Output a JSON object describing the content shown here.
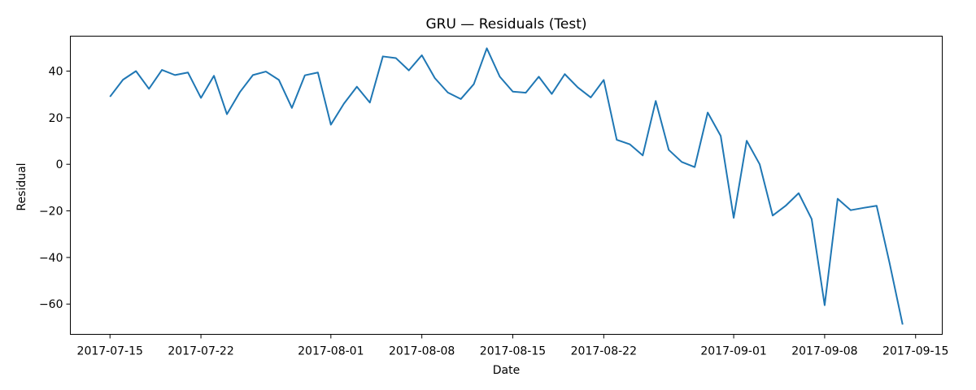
{
  "chart_data": {
    "type": "line",
    "title": "GRU — Residuals (Test)",
    "xlabel": "Date",
    "ylabel": "Residual",
    "x_axis_type": "date",
    "xlim": [
      "2017-07-15",
      "2017-09-16"
    ],
    "ylim": [
      -73,
      55
    ],
    "x_ticks": [
      "2017-07-15",
      "2017-07-22",
      "2017-08-01",
      "2017-08-08",
      "2017-08-15",
      "2017-08-22",
      "2017-09-01",
      "2017-09-08",
      "2017-09-15"
    ],
    "y_ticks": [
      40,
      20,
      0,
      -20,
      -40,
      -60
    ],
    "y_tick_labels": [
      "40",
      "20",
      "0",
      "−20",
      "−40",
      "−60"
    ],
    "grid": false,
    "line_color": "#1f77b4",
    "series": [
      {
        "x": [
          "2017-07-15",
          "2017-07-16",
          "2017-07-17",
          "2017-07-18",
          "2017-07-19",
          "2017-07-20",
          "2017-07-21",
          "2017-07-22",
          "2017-07-23",
          "2017-07-24",
          "2017-07-25",
          "2017-07-26",
          "2017-07-27",
          "2017-07-28",
          "2017-07-29",
          "2017-07-30",
          "2017-07-31",
          "2017-08-01",
          "2017-08-02",
          "2017-08-03",
          "2017-08-04",
          "2017-08-05",
          "2017-08-06",
          "2017-08-07",
          "2017-08-08",
          "2017-08-09",
          "2017-08-10",
          "2017-08-11",
          "2017-08-12",
          "2017-08-13",
          "2017-08-14",
          "2017-08-15",
          "2017-08-16",
          "2017-08-17",
          "2017-08-18",
          "2017-08-19",
          "2017-08-20",
          "2017-08-21",
          "2017-08-22",
          "2017-08-23",
          "2017-08-24",
          "2017-08-25",
          "2017-08-26",
          "2017-08-27",
          "2017-08-28",
          "2017-08-29",
          "2017-08-30",
          "2017-08-31",
          "2017-09-01",
          "2017-09-02",
          "2017-09-03",
          "2017-09-04",
          "2017-09-05",
          "2017-09-06",
          "2017-09-07",
          "2017-09-08",
          "2017-09-09",
          "2017-09-10",
          "2017-09-11",
          "2017-09-12",
          "2017-09-13",
          "2017-09-14"
        ],
        "values": [
          29.0,
          36.3,
          40.0,
          32.4,
          40.5,
          38.3,
          39.4,
          28.5,
          38.0,
          21.5,
          31.0,
          38.3,
          39.8,
          36.2,
          24.2,
          38.2,
          39.4,
          17.0,
          26.0,
          33.3,
          26.5,
          46.3,
          45.6,
          40.3,
          46.8,
          37.0,
          30.8,
          28.0,
          34.4,
          49.8,
          37.6,
          31.2,
          30.7,
          37.6,
          30.2,
          38.7,
          33.0,
          28.7,
          36.2,
          10.5,
          8.6,
          3.8,
          27.2,
          6.2,
          1.0,
          -1.2,
          22.2,
          12.2,
          -23.0,
          10.1,
          0.0,
          -22.0,
          -17.8,
          -12.4,
          -23.5,
          -60.5,
          -14.8,
          -19.7,
          -18.7,
          -17.8,
          -42.5,
          -68.8
        ]
      }
    ]
  }
}
